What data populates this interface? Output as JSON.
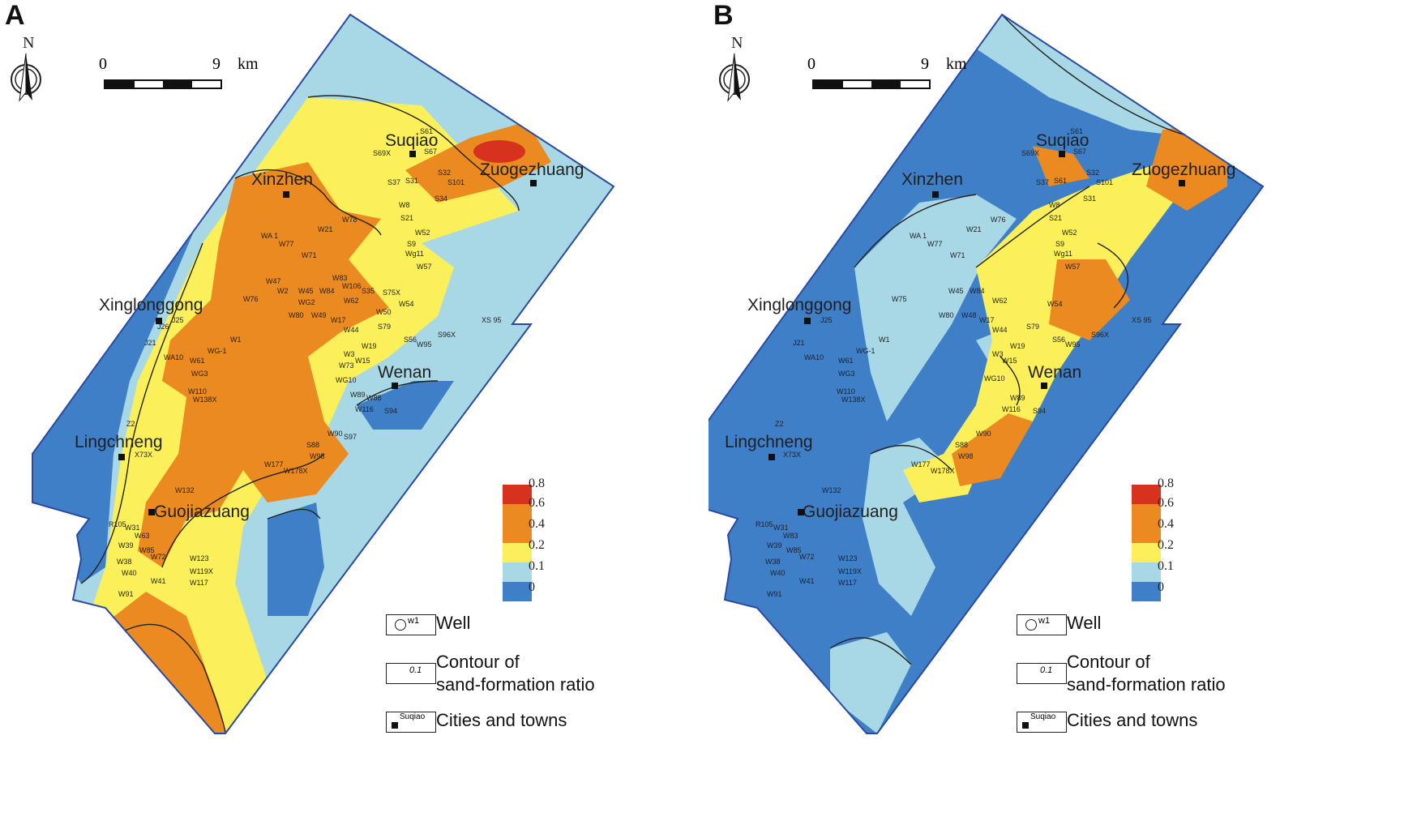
{
  "colors": {
    "blue": "#3f7fc8",
    "light_blue": "#a8d8e6",
    "yellow": "#fbf05a",
    "orange": "#ea8a20",
    "red": "#d6321d",
    "frame": "#2a4aa0"
  },
  "colorbar": {
    "ticks": [
      "0.8",
      "0.6",
      "0.4",
      "0.2",
      "0.1",
      "0"
    ]
  },
  "scale_bar": {
    "start": "0",
    "end": "9",
    "unit": "km"
  },
  "north_label": "N",
  "legend": {
    "well": "Well",
    "well_sample": "w1",
    "contour_line1": "Contour of",
    "contour_line2": "sand-formation ratio",
    "contour_sample": "0.1",
    "towns": "Cities and towns",
    "town_sample": "Suqiao"
  },
  "panel_a": {
    "letter": "A",
    "towns": [
      "Suqiao",
      "Zuogezhuang",
      "Xinzhen",
      "Xinglonggong",
      "Wenan",
      "Lingchneng",
      "Guojiazuang"
    ],
    "wells": [
      "S61",
      "S69X",
      "S67",
      "S37",
      "S31",
      "S32",
      "S101",
      "S34",
      "W8",
      "S21",
      "W52",
      "S9",
      "Wg11",
      "W57",
      "W78",
      "W21",
      "WA 1",
      "W77",
      "W71",
      "W83",
      "W106",
      "W47",
      "W2",
      "W45",
      "W84",
      "S35",
      "S75X",
      "W76",
      "WG2",
      "W62",
      "W50",
      "W54",
      "W80",
      "W49",
      "W17",
      "W44",
      "S79",
      "J25",
      "J26",
      "W1",
      "J21",
      "WG-1",
      "WA10",
      "W61",
      "WG3",
      "S56",
      "W95",
      "S96X",
      "XS 95",
      "W19",
      "W3",
      "W15",
      "W73",
      "WG10",
      "W110",
      "W138X",
      "W89",
      "W88",
      "W116",
      "S94",
      "Z2",
      "X73X",
      "W90",
      "S97",
      "S88",
      "W98",
      "W177",
      "W178X",
      "W132",
      "R105",
      "W31",
      "W63",
      "W39",
      "W85",
      "W38",
      "W72",
      "W123",
      "W40",
      "W119X",
      "W41",
      "W117",
      "W91"
    ]
  },
  "panel_b": {
    "letter": "B",
    "towns": [
      "Suqiao",
      "Zuogezhuang",
      "Xinzhen",
      "Xinglonggong",
      "Wenan",
      "Lingchneng",
      "Guojiazuang"
    ],
    "wells": [
      "S61",
      "S69X",
      "S67",
      "S37",
      "S61",
      "S32",
      "S101",
      "S31",
      "W8",
      "S21",
      "W52",
      "S9",
      "Wg11",
      "W57",
      "W76",
      "W21",
      "WA 1",
      "W77",
      "W71",
      "W45",
      "W84",
      "W75",
      "W62",
      "W54",
      "W80",
      "W48",
      "W17",
      "W44",
      "S79",
      "J25",
      "W1",
      "J21",
      "WG-1",
      "WA10",
      "W61",
      "WG3",
      "S56",
      "W95",
      "S96X",
      "XS 95",
      "W19",
      "W3",
      "W15",
      "WG10",
      "W110",
      "W138X",
      "W89",
      "W116",
      "S94",
      "Z2",
      "X73X",
      "W90",
      "S88",
      "W98",
      "W177",
      "W178X",
      "W132",
      "R105",
      "W31",
      "W83",
      "W39",
      "W85",
      "W38",
      "W72",
      "W123",
      "W40",
      "W119X",
      "W41",
      "W117",
      "W91"
    ]
  }
}
